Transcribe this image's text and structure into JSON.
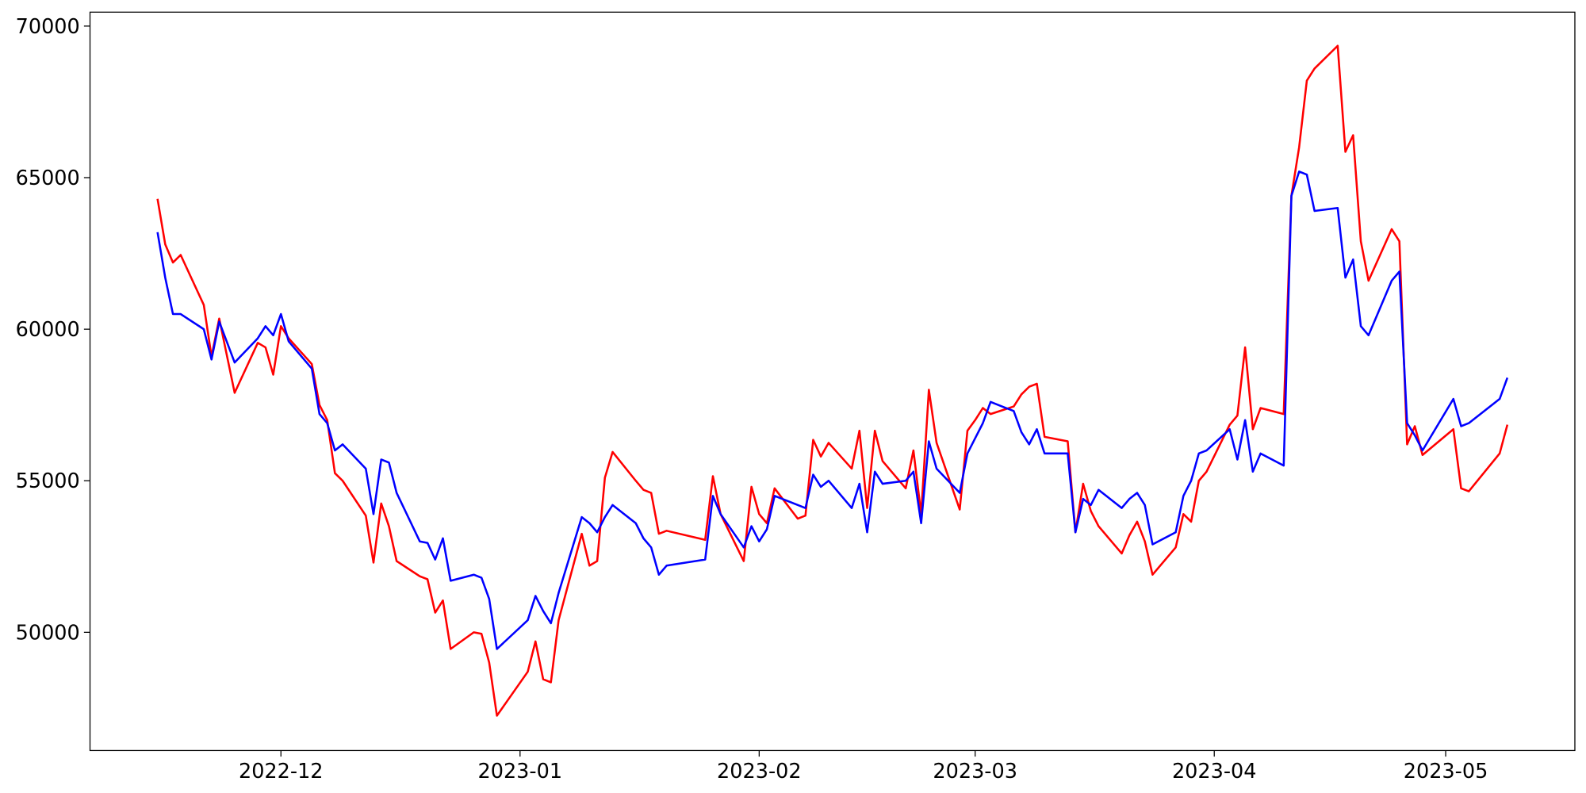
{
  "chart_data": {
    "type": "line",
    "x": [
      19311,
      19312,
      19313,
      19314,
      19317,
      19318,
      19319,
      19321,
      19324,
      19325,
      19326,
      19327,
      19328,
      19331,
      19332,
      19333,
      19334,
      19335,
      19338,
      19339,
      19340,
      19341,
      19342,
      19345,
      19346,
      19347,
      19348,
      19349,
      19352,
      19353,
      19354,
      19355,
      19359,
      19360,
      19361,
      19362,
      19363,
      19366,
      19367,
      19368,
      19369,
      19370,
      19373,
      19374,
      19375,
      19376,
      19377,
      19382,
      19383,
      19384,
      19387,
      19388,
      19389,
      19390,
      19391,
      19394,
      19395,
      19396,
      19397,
      19398,
      19401,
      19402,
      19403,
      19404,
      19405,
      19408,
      19409,
      19410,
      19411,
      19412,
      19415,
      19416,
      19417,
      19418,
      19419,
      19422,
      19423,
      19424,
      19425,
      19426,
      19429,
      19430,
      19431,
      19432,
      19433,
      19436,
      19437,
      19438,
      19439,
      19440,
      19443,
      19444,
      19445,
      19446,
      19447,
      19450,
      19451,
      19452,
      19453,
      19454,
      19457,
      19458,
      19459,
      19460,
      19461,
      19464,
      19465,
      19466,
      19467,
      19468,
      19471,
      19472,
      19473,
      19474,
      19475,
      19479,
      19480,
      19481,
      19485,
      19486
    ],
    "series": [
      {
        "color": "#ff0000",
        "values": [
          64300,
          62800,
          62200,
          62450,
          60800,
          59100,
          60350,
          57900,
          59550,
          59400,
          58500,
          60100,
          59700,
          58850,
          57500,
          57000,
          55250,
          55000,
          53850,
          52300,
          54250,
          53500,
          52350,
          51850,
          51750,
          50650,
          51050,
          49450,
          50000,
          49950,
          49000,
          47250,
          48700,
          49700,
          48450,
          48350,
          50400,
          53250,
          52200,
          52350,
          55100,
          55950,
          55000,
          54700,
          54600,
          53250,
          53350,
          53050,
          55150,
          53900,
          52350,
          54800,
          53900,
          53600,
          54750,
          53750,
          53850,
          56350,
          55800,
          56250,
          55400,
          56650,
          54100,
          56650,
          55650,
          54750,
          56000,
          53900,
          58000,
          56250,
          54050,
          56650,
          57000,
          57400,
          57200,
          57450,
          57850,
          58100,
          58200,
          56450,
          56300,
          53300,
          54900,
          54000,
          53500,
          52600,
          53200,
          53650,
          53000,
          51900,
          52800,
          53900,
          53650,
          55000,
          55300,
          56850,
          57150,
          59400,
          56700,
          57400,
          57200,
          64400,
          66000,
          68200,
          68600,
          69350,
          65850,
          66400,
          62900,
          61600,
          63300,
          62900,
          56200,
          56800,
          55850,
          56700,
          54750,
          54650,
          55900,
          56850
        ]
      },
      {
        "color": "#0000ff",
        "values": [
          63200,
          61700,
          60500,
          60500,
          60000,
          59000,
          60250,
          58900,
          59700,
          60100,
          59800,
          60500,
          59600,
          58700,
          57200,
          56900,
          56000,
          56200,
          55400,
          53900,
          55700,
          55600,
          54600,
          53000,
          52950,
          52400,
          53100,
          51700,
          51900,
          51800,
          51100,
          49450,
          50400,
          51200,
          50700,
          50300,
          51300,
          53800,
          53600,
          53300,
          53800,
          54200,
          53600,
          53100,
          52800,
          51900,
          52200,
          52400,
          54500,
          53900,
          52800,
          53500,
          53000,
          53400,
          54500,
          54200,
          54100,
          55200,
          54800,
          55000,
          54100,
          54900,
          53300,
          55300,
          54900,
          55000,
          55300,
          53600,
          56300,
          55400,
          54600,
          55900,
          56400,
          56900,
          57600,
          57300,
          56600,
          56200,
          56700,
          55900,
          55900,
          53300,
          54400,
          54200,
          54700,
          54100,
          54400,
          54600,
          54200,
          52900,
          53300,
          54500,
          55000,
          55900,
          56000,
          56700,
          55700,
          57000,
          55300,
          55900,
          55500,
          64400,
          65200,
          65100,
          63900,
          64000,
          61700,
          62300,
          60100,
          59800,
          61600,
          61900,
          56900,
          56500,
          56000,
          57700,
          56800,
          56900,
          57700,
          58400
        ]
      }
    ],
    "xlim": [
      19302.25,
      19494.75
    ],
    "xticks": [
      {
        "value": 19327,
        "label": "2022-12"
      },
      {
        "value": 19358,
        "label": "2023-01"
      },
      {
        "value": 19389,
        "label": "2023-02"
      },
      {
        "value": 19417,
        "label": "2023-03"
      },
      {
        "value": 19448,
        "label": "2023-04"
      },
      {
        "value": 19478,
        "label": "2023-05"
      }
    ],
    "ylim": [
      46100,
      70460
    ],
    "yticks": [
      50000,
      55000,
      60000,
      65000,
      70000
    ]
  }
}
